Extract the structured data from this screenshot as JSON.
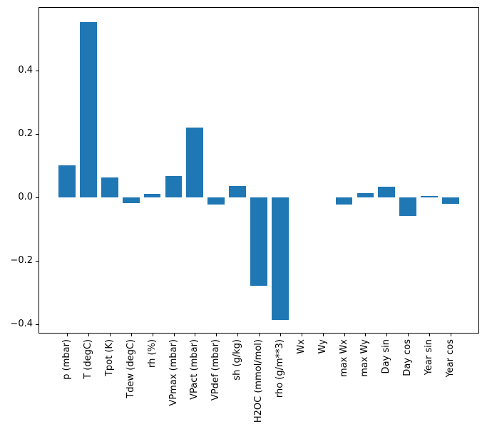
{
  "figure": {
    "background": "#ffffff",
    "frame_color": "#000000",
    "tick_color": "#000000"
  },
  "chart_data": {
    "type": "bar",
    "title": "",
    "xlabel": "",
    "ylabel": "",
    "categories": [
      "p (mbar)",
      "T (degC)",
      "Tpot (K)",
      "Tdew (degC)",
      "rh (%)",
      "VPmax (mbar)",
      "VPact (mbar)",
      "VPdef (mbar)",
      "sh (g/kg)",
      "H2OC (mmol/mol)",
      "rho (g/m**3)",
      "Wx",
      "Wy",
      "max Wx",
      "max Wy",
      "Day sin",
      "Day cos",
      "Year sin",
      "Year cos"
    ],
    "values": [
      0.1,
      0.553,
      0.063,
      -0.018,
      0.012,
      0.068,
      0.22,
      -0.024,
      0.035,
      -0.279,
      -0.387,
      0.0,
      0.0,
      -0.022,
      0.014,
      0.034,
      -0.06,
      0.004,
      -0.02
    ],
    "bar_color": "#1f77b4",
    "bar_width_fraction": 0.8,
    "xlim": [
      -1.34,
      19.34
    ],
    "ylim": [
      -0.43,
      0.6
    ],
    "yticks": [
      0.4,
      0.2,
      0.0,
      -0.2,
      -0.4
    ],
    "ytick_labels": [
      "0.4",
      "0.2",
      "0.0",
      "−0.2",
      "−0.4"
    ],
    "grid": false,
    "legend": "none"
  }
}
